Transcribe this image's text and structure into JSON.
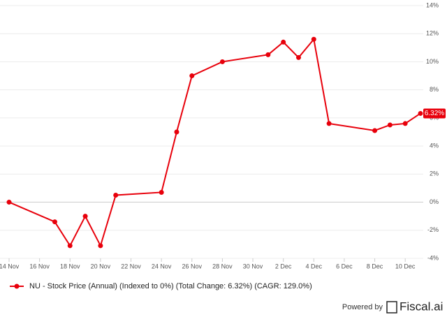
{
  "chart_data": {
    "type": "line",
    "x": [
      "14 Nov",
      "17 Nov",
      "18 Nov",
      "19 Nov",
      "20 Nov",
      "21 Nov",
      "24 Nov",
      "25 Nov",
      "26 Nov",
      "28 Nov",
      "1 Dec",
      "2 Dec",
      "3 Dec",
      "4 Dec",
      "5 Dec",
      "8 Dec",
      "9 Dec",
      "10 Dec",
      "11 Dec"
    ],
    "series": [
      {
        "name": "NU - Stock Price (Annual) (Indexed to 0%) (Total Change: 6.32%) (CAGR: 129.0%)",
        "color": "#e8000b",
        "values": [
          0,
          -1.4,
          -3.1,
          -1.0,
          -3.1,
          0.5,
          0.7,
          5.0,
          9.0,
          10.0,
          10.5,
          11.4,
          10.3,
          11.6,
          5.6,
          5.1,
          5.5,
          5.6,
          6.32
        ],
        "value_labels": [
          null,
          null,
          null,
          null,
          null,
          null,
          null,
          null,
          null,
          null,
          null,
          null,
          null,
          null,
          null,
          null,
          null,
          null,
          "6.32%"
        ]
      }
    ],
    "xlim": [
      "14 Nov",
      "11 Dec"
    ],
    "xticks": [
      "14 Nov",
      "16 Nov",
      "18 Nov",
      "20 Nov",
      "22 Nov",
      "24 Nov",
      "26 Nov",
      "28 Nov",
      "30 Nov",
      "2 Dec",
      "4 Dec",
      "6 Dec",
      "8 Dec",
      "10 Dec"
    ],
    "ylim": [
      -4,
      14
    ],
    "yticks": [
      {
        "value": -4,
        "label": "-4%"
      },
      {
        "value": -2,
        "label": "-2%"
      },
      {
        "value": 0,
        "label": "0%"
      },
      {
        "value": 2,
        "label": "2%"
      },
      {
        "value": 4,
        "label": "4%"
      },
      {
        "value": 6,
        "label": "6%"
      },
      {
        "value": 8,
        "label": "8%"
      },
      {
        "value": 10,
        "label": "10%"
      },
      {
        "value": 12,
        "label": "12%"
      },
      {
        "value": 14,
        "label": "14%"
      }
    ],
    "grid": true
  },
  "footer": {
    "prefix": "Powered by",
    "brand": "Fiscal.ai"
  }
}
